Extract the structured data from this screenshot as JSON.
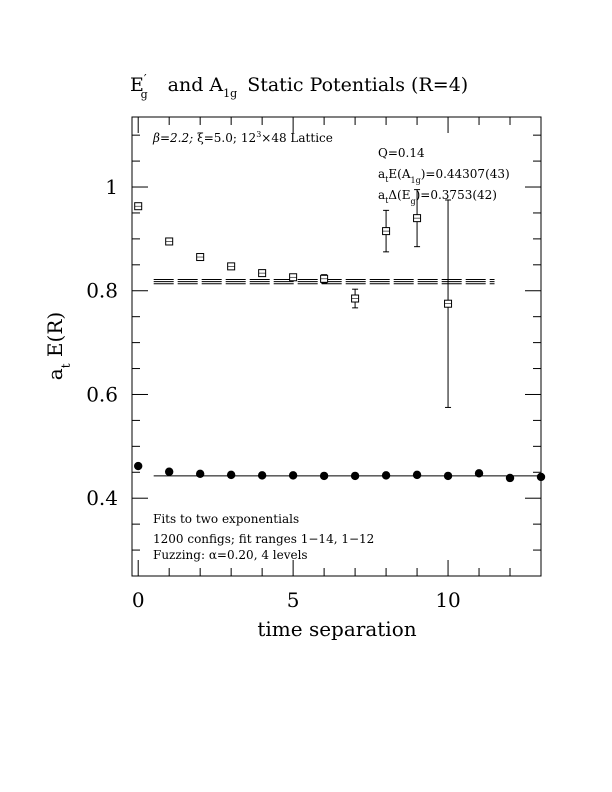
{
  "chart_data": {
    "type": "scatter",
    "title": {
      "part1_main": "E",
      "part1_sup": "′",
      "part1_sub": "g",
      "part2_text": "and A",
      "part2_sub": "1g",
      "part3_text": "Static Potentials (R=4)"
    },
    "xlabel": "time separation",
    "ylabel": {
      "main": "a",
      "sub": "t",
      "rest": " E(R)"
    },
    "xlim": [
      -0.2,
      13
    ],
    "ylim": [
      0.25,
      1.135
    ],
    "x_ticks": [
      0,
      5,
      10
    ],
    "y_ticks": [
      0.4,
      0.6,
      0.8,
      1.0
    ],
    "x_tick_labels": [
      "0",
      "5",
      "10"
    ],
    "y_tick_labels": [
      "0.4",
      "0.6",
      "0.8",
      "1"
    ],
    "x_minor_step": 1,
    "y_minor_step": 0.05,
    "annotations": {
      "lattice": {
        "beta": "β=2.2;",
        "xi": "ξ=5.0;",
        "lat_a": "12",
        "lat_sup": "3",
        "lat_b": "×48 Lattice"
      },
      "q": "Q=0.14",
      "a1g": {
        "a": "a",
        "t": "t",
        "e": "E(A",
        "sub": "1g",
        "val": ")=0.44307(43)"
      },
      "eg": {
        "a": "a",
        "t": "t",
        "d": "Δ(E",
        "sub": "g",
        "val": ")=0.3753(42)"
      },
      "fits_line1": "Fits to two exponentials",
      "fits_line2": "1200 configs; fit ranges 1−14, 1−12",
      "fits_line3_a": "Fuzzing: ",
      "fits_line3_b": "α=0.20, 4 levels"
    },
    "series": [
      {
        "marker": "open-square",
        "x": [
          0,
          1,
          2,
          3,
          4,
          5,
          6,
          7,
          8,
          9,
          10
        ],
        "y": [
          0.963,
          0.895,
          0.865,
          0.847,
          0.834,
          0.826,
          0.823,
          0.785,
          0.915,
          0.94,
          0.775
        ],
        "err": [
          0.003,
          0.003,
          0.003,
          0.003,
          0.003,
          0.004,
          0.008,
          0.018,
          0.04,
          0.055,
          0.2
        ]
      },
      {
        "marker": "filled-circle",
        "x": [
          0,
          1,
          2,
          3,
          4,
          5,
          6,
          7,
          8,
          9,
          10,
          11,
          12,
          13
        ],
        "y": [
          0.462,
          0.451,
          0.447,
          0.445,
          0.444,
          0.444,
          0.443,
          0.443,
          0.444,
          0.445,
          0.443,
          0.448,
          0.439,
          0.441
        ],
        "err": [
          0.001,
          0.001,
          0.001,
          0.001,
          0.001,
          0.001,
          0.001,
          0.001,
          0.001,
          0.001,
          0.001,
          0.001,
          0.001,
          0.001
        ]
      }
    ],
    "fit_bands": [
      {
        "x_range": [
          0.5,
          11.5
        ],
        "lines": [
          0.8134,
          0.8176,
          0.8218
        ],
        "style": "dashed"
      },
      {
        "x_range": [
          0.5,
          13
        ],
        "lines": [
          0.44307
        ],
        "style": "solid"
      }
    ]
  }
}
